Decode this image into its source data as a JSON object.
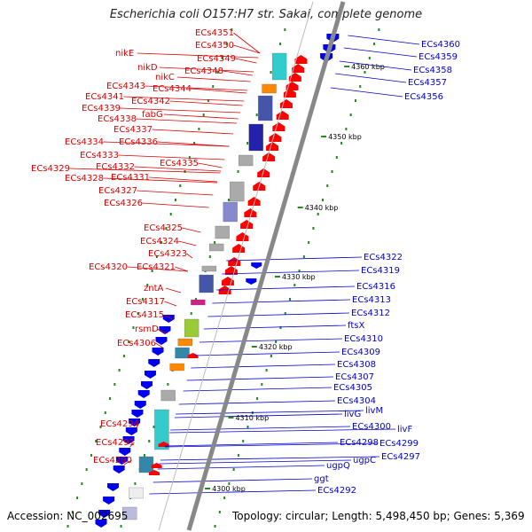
{
  "title": "Escherichia coli O157:H7 str. Sakai, complete genome",
  "footer": {
    "accession": "Accession: NC_002695",
    "summary": "Topology: circular; Length: 5,498,450 bp; Genes: 5,369"
  },
  "colors": {
    "forward_label": "#dd0000",
    "reverse_label": "#0000cc",
    "backbone": "#888888",
    "gc_marker": "#228822",
    "forward_gene": "#ff0000",
    "reverse_gene": "#0000ee"
  },
  "kbp_ticks": [
    "4360 kbp",
    "4350 kbp",
    "4340 kbp",
    "4330 kbp",
    "4320 kbp",
    "4310 kbp",
    "4300 kbp"
  ],
  "forward_genes": [
    "ECs4351",
    "ECs4350",
    "ECs4349",
    "nikE",
    "ECs4348",
    "nikD",
    "nikC",
    "ECs4343",
    "ECs4344",
    "ECs4341",
    "ECs4342",
    "ECs4339",
    "fabG",
    "ECs4338",
    "ECs4337",
    "ECs4336",
    "ECs4334",
    "ECs4333",
    "ECs4335",
    "ECs4332",
    "ECs4329",
    "ECs4331",
    "ECs4328",
    "ECs4327",
    "ECs4326",
    "ECs4325",
    "ECs4324",
    "ECs4323",
    "ECs4321",
    "ECs4320",
    "zntA",
    "ECs4317",
    "ECs4315",
    "rsmD",
    "ECs4306",
    "ECs4294",
    "ECs4291",
    "ECs4290"
  ],
  "reverse_genes": [
    "ECs4360",
    "ECs4359",
    "ECs4358",
    "ECs4357",
    "ECs4356",
    "ECs4322",
    "ECs4319",
    "ECs4316",
    "ECs4313",
    "ECs4312",
    "ftsX",
    "ECs4310",
    "ECs4309",
    "ECs4308",
    "ECs4307",
    "ECs4305",
    "ECs4304",
    "livM",
    "livG",
    "ECs4300",
    "livF",
    "ECs4298",
    "ECs4299",
    "ECs4297",
    "ugpC",
    "ugpQ",
    "ggt",
    "ECs4292"
  ]
}
